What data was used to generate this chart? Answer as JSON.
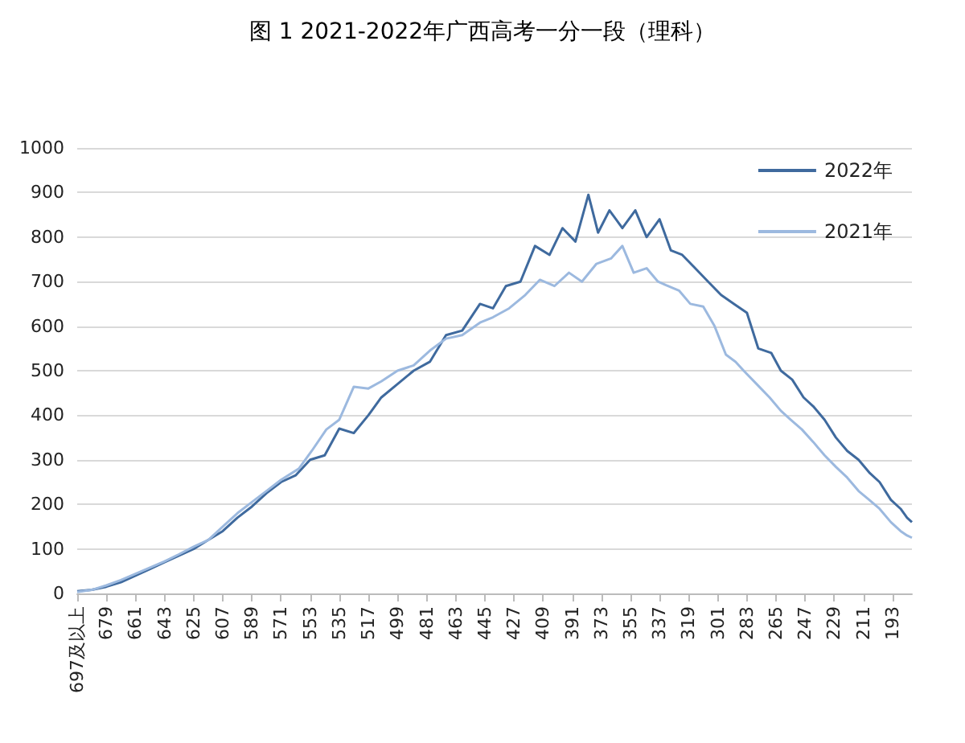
{
  "chart_data": {
    "type": "line",
    "title": "图 1 2021-2022年广西高考一分一段（理科）",
    "xlim": [
      697,
      181
    ],
    "xticks": [
      {
        "value": 697,
        "label": "697及以上"
      },
      679,
      661,
      643,
      625,
      607,
      589,
      571,
      553,
      535,
      517,
      499,
      481,
      463,
      445,
      427,
      409,
      391,
      373,
      355,
      337,
      319,
      301,
      283,
      265,
      247,
      229,
      211,
      193
    ],
    "ylim": [
      0,
      1000
    ],
    "yticks": [
      0,
      100,
      200,
      300,
      400,
      500,
      600,
      700,
      800,
      900,
      1000
    ],
    "grid": "y",
    "legend": "top right",
    "marker": "none",
    "line_style": "solid",
    "series": [
      {
        "name": "2022年",
        "color": "#3f6a9e",
        "x": [
          697,
          688,
          679,
          670,
          661,
          652,
          643,
          634,
          625,
          616,
          607,
          598,
          589,
          580,
          571,
          562,
          553,
          544,
          535,
          526,
          517,
          509,
          499,
          489,
          479,
          469,
          459,
          448,
          440,
          432,
          423,
          414,
          405,
          397,
          389,
          381,
          375,
          368,
          360,
          352,
          345,
          337,
          330,
          323,
          315,
          307,
          299,
          291,
          283,
          276,
          268,
          262,
          255,
          248,
          242,
          235,
          228,
          221,
          214,
          207,
          201,
          194,
          188,
          184,
          181
        ],
        "values": [
          5,
          8,
          15,
          25,
          40,
          55,
          70,
          85,
          100,
          120,
          140,
          170,
          195,
          225,
          250,
          265,
          300,
          310,
          370,
          360,
          400,
          440,
          470,
          500,
          520,
          580,
          590,
          650,
          640,
          690,
          700,
          780,
          760,
          820,
          790,
          895,
          810,
          860,
          820,
          860,
          800,
          840,
          770,
          760,
          730,
          700,
          670,
          650,
          630,
          550,
          540,
          500,
          480,
          440,
          420,
          390,
          350,
          320,
          300,
          270,
          250,
          210,
          190,
          170,
          160
        ]
      },
      {
        "name": "2021年",
        "color": "#9cb9df",
        "x": [
          697,
          688,
          679,
          670,
          661,
          652,
          643,
          634,
          625,
          616,
          607,
          598,
          589,
          580,
          571,
          560,
          552,
          543,
          535,
          526,
          517,
          509,
          499,
          489,
          479,
          469,
          459,
          448,
          440,
          430,
          420,
          411,
          402,
          393,
          385,
          376,
          367,
          360,
          353,
          345,
          338,
          333,
          325,
          318,
          310,
          303,
          296,
          290,
          285,
          277,
          269,
          262,
          256,
          249,
          242,
          235,
          228,
          221,
          214,
          208,
          201,
          194,
          188,
          184,
          181
        ],
        "values": [
          3,
          8,
          18,
          30,
          44,
          58,
          72,
          88,
          105,
          120,
          150,
          180,
          205,
          230,
          255,
          280,
          320,
          368,
          390,
          464,
          460,
          476,
          500,
          512,
          545,
          572,
          580,
          608,
          620,
          640,
          670,
          704,
          690,
          720,
          700,
          740,
          752,
          780,
          720,
          730,
          700,
          692,
          680,
          650,
          644,
          600,
          536,
          520,
          500,
          470,
          440,
          410,
          390,
          368,
          340,
          310,
          284,
          260,
          230,
          212,
          190,
          160,
          140,
          130,
          125
        ]
      }
    ]
  }
}
